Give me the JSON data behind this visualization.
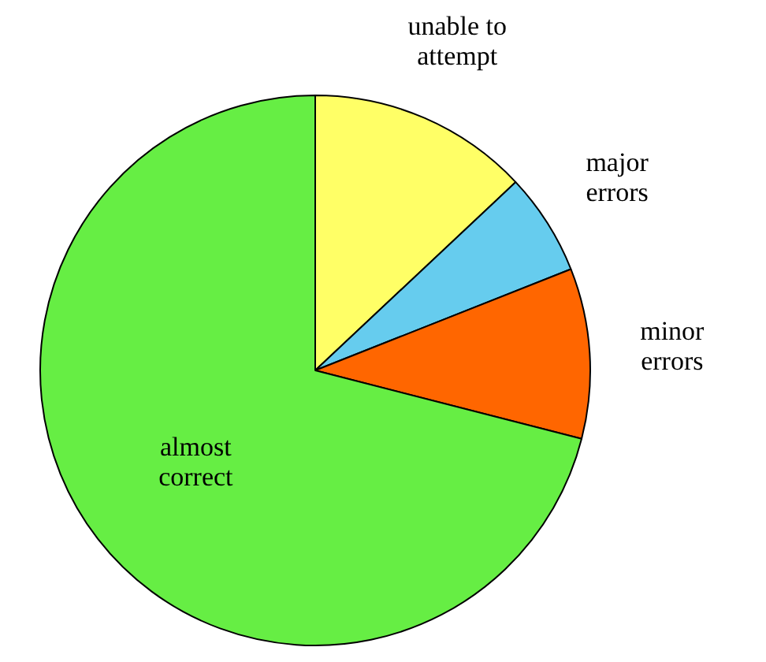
{
  "chart_data": {
    "type": "pie",
    "categories": [
      "unable to attempt",
      "major errors",
      "minor errors",
      "almost correct"
    ],
    "values": [
      13,
      6,
      10,
      71
    ],
    "colors": [
      "#ffff66",
      "#66ccee",
      "#ff6600",
      "#66ee44"
    ]
  }
}
